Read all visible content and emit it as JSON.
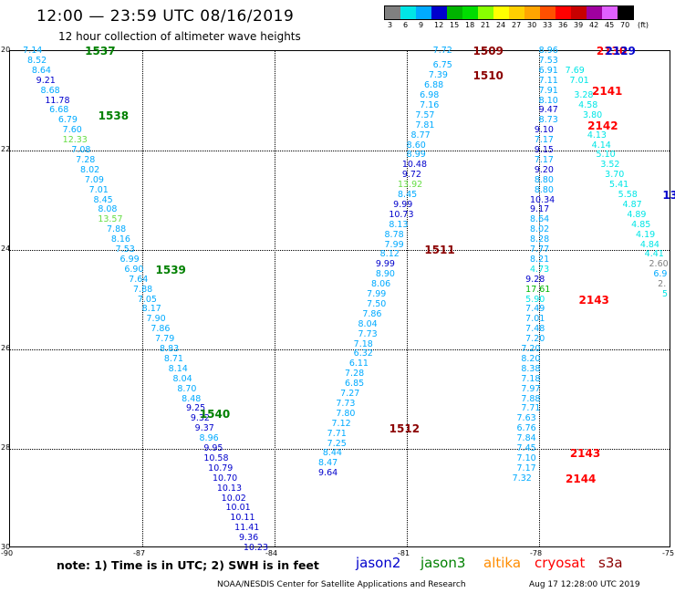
{
  "header": {
    "title": "12:00 — 23:59 UTC 08/16/2019",
    "subtitle": "12 hour collection of altimeter wave heights"
  },
  "color_scale": {
    "unit": "(ft)",
    "labels": [
      "3",
      "6",
      "9",
      "12",
      "15",
      "18",
      "21",
      "24",
      "27",
      "30",
      "33",
      "36",
      "39",
      "42",
      "45",
      "70"
    ],
    "colors": [
      "#808080",
      "#00e6e6",
      "#00aaff",
      "#0000cc",
      "#00b400",
      "#00dc00",
      "#88ff00",
      "#ffff00",
      "#ffd000",
      "#ffa500",
      "#ff5000",
      "#ff0000",
      "#c80000",
      "#a000a0",
      "#e060ff",
      "#000000"
    ]
  },
  "map": {
    "lon_range": [
      -90,
      -75
    ],
    "lat_range": [
      20,
      30
    ],
    "lon_ticks": [
      "-90",
      "-87",
      "-84",
      "-81",
      "-78",
      "-75"
    ],
    "lat_ticks": [
      "20",
      "22",
      "24",
      "26",
      "28",
      "30"
    ]
  },
  "tracks": [
    {
      "id": "1537",
      "lon": -88.3,
      "lat": 20.0,
      "color": "#008000"
    },
    {
      "id": "1538",
      "lon": -88.0,
      "lat": 21.3,
      "color": "#008000"
    },
    {
      "id": "1539",
      "lon": -86.7,
      "lat": 24.4,
      "color": "#008000"
    },
    {
      "id": "1540",
      "lon": -85.7,
      "lat": 27.3,
      "color": "#008000"
    },
    {
      "id": "1509",
      "lon": -79.5,
      "lat": 20.0,
      "color": "#8b0000"
    },
    {
      "id": "1510",
      "lon": -79.5,
      "lat": 20.5,
      "color": "#8b0000"
    },
    {
      "id": "1511",
      "lon": -80.6,
      "lat": 24.0,
      "color": "#8b0000"
    },
    {
      "id": "1512",
      "lon": -81.4,
      "lat": 27.6,
      "color": "#8b0000"
    },
    {
      "id": "2130",
      "lon": -76.7,
      "lat": 20.0,
      "color": "#ff0000"
    },
    {
      "id": "2129",
      "lon": -76.5,
      "lat": 20.0,
      "color": "#0000cc"
    },
    {
      "id": "2141",
      "lon": -76.8,
      "lat": 20.8,
      "color": "#ff0000"
    },
    {
      "id": "2142",
      "lon": -76.9,
      "lat": 21.5,
      "color": "#ff0000"
    },
    {
      "id": "2143",
      "lon": -77.1,
      "lat": 25.0,
      "color": "#ff0000"
    },
    {
      "id": "2143",
      "lon": -77.3,
      "lat": 28.1,
      "color": "#ff0000"
    },
    {
      "id": "2144",
      "lon": -77.4,
      "lat": 28.6,
      "color": "#ff0000"
    },
    {
      "id": "13",
      "lon": -75.2,
      "lat": 22.9,
      "color": "#0000cc"
    }
  ],
  "wave_heights": [
    {
      "v": "7.14",
      "lon": -89.5,
      "lat": 20.0,
      "c": "#00aaff"
    },
    {
      "v": "8.52",
      "lon": -89.4,
      "lat": 20.2,
      "c": "#00aaff"
    },
    {
      "v": "8.64",
      "lon": -89.3,
      "lat": 20.4,
      "c": "#00aaff"
    },
    {
      "v": "9.21",
      "lon": -89.2,
      "lat": 20.6,
      "c": "#0000cc"
    },
    {
      "v": "8.68",
      "lon": -89.1,
      "lat": 20.8,
      "c": "#00aaff"
    },
    {
      "v": "11.78",
      "lon": -89.0,
      "lat": 21.0,
      "c": "#0000cc"
    },
    {
      "v": "6.68",
      "lon": -88.9,
      "lat": 21.2,
      "c": "#00aaff"
    },
    {
      "v": "6.79",
      "lon": -88.7,
      "lat": 21.4,
      "c": "#00aaff"
    },
    {
      "v": "7.60",
      "lon": -88.6,
      "lat": 21.6,
      "c": "#00aaff"
    },
    {
      "v": "12.33",
      "lon": -88.6,
      "lat": 21.8,
      "c": "#66dd44"
    },
    {
      "v": "7.08",
      "lon": -88.4,
      "lat": 22.0,
      "c": "#00aaff"
    },
    {
      "v": "7.28",
      "lon": -88.3,
      "lat": 22.2,
      "c": "#00aaff"
    },
    {
      "v": "8.02",
      "lon": -88.2,
      "lat": 22.4,
      "c": "#00aaff"
    },
    {
      "v": "7.09",
      "lon": -88.1,
      "lat": 22.6,
      "c": "#00aaff"
    },
    {
      "v": "7.01",
      "lon": -88.0,
      "lat": 22.8,
      "c": "#00aaff"
    },
    {
      "v": "8.45",
      "lon": -87.9,
      "lat": 23.0,
      "c": "#00aaff"
    },
    {
      "v": "8.08",
      "lon": -87.8,
      "lat": 23.2,
      "c": "#00aaff"
    },
    {
      "v": "13.57",
      "lon": -87.8,
      "lat": 23.4,
      "c": "#66dd44"
    },
    {
      "v": "7.88",
      "lon": -87.6,
      "lat": 23.6,
      "c": "#00aaff"
    },
    {
      "v": "8.16",
      "lon": -87.5,
      "lat": 23.8,
      "c": "#00aaff"
    },
    {
      "v": "7.53",
      "lon": -87.4,
      "lat": 24.0,
      "c": "#00aaff"
    },
    {
      "v": "6.99",
      "lon": -87.3,
      "lat": 24.2,
      "c": "#00aaff"
    },
    {
      "v": "6.90",
      "lon": -87.2,
      "lat": 24.4,
      "c": "#00aaff"
    },
    {
      "v": "7.64",
      "lon": -87.1,
      "lat": 24.6,
      "c": "#00aaff"
    },
    {
      "v": "7.88",
      "lon": -87.0,
      "lat": 24.8,
      "c": "#00aaff"
    },
    {
      "v": "7.05",
      "lon": -86.9,
      "lat": 25.0,
      "c": "#00aaff"
    },
    {
      "v": "8.17",
      "lon": -86.8,
      "lat": 25.2,
      "c": "#00aaff"
    },
    {
      "v": "7.90",
      "lon": -86.7,
      "lat": 25.4,
      "c": "#00aaff"
    },
    {
      "v": "7.86",
      "lon": -86.6,
      "lat": 25.6,
      "c": "#00aaff"
    },
    {
      "v": "7.79",
      "lon": -86.5,
      "lat": 25.8,
      "c": "#00aaff"
    },
    {
      "v": "8.83",
      "lon": -86.4,
      "lat": 26.0,
      "c": "#00aaff"
    },
    {
      "v": "8.71",
      "lon": -86.3,
      "lat": 26.2,
      "c": "#00aaff"
    },
    {
      "v": "8.14",
      "lon": -86.2,
      "lat": 26.4,
      "c": "#00aaff"
    },
    {
      "v": "8.04",
      "lon": -86.1,
      "lat": 26.6,
      "c": "#00aaff"
    },
    {
      "v": "8.70",
      "lon": -86.0,
      "lat": 26.8,
      "c": "#00aaff"
    },
    {
      "v": "8.48",
      "lon": -85.9,
      "lat": 27.0,
      "c": "#00aaff"
    },
    {
      "v": "9.25",
      "lon": -85.8,
      "lat": 27.2,
      "c": "#0000cc"
    },
    {
      "v": "9.32",
      "lon": -85.7,
      "lat": 27.4,
      "c": "#0000cc"
    },
    {
      "v": "9.37",
      "lon": -85.6,
      "lat": 27.6,
      "c": "#0000cc"
    },
    {
      "v": "8.96",
      "lon": -85.5,
      "lat": 27.8,
      "c": "#00aaff"
    },
    {
      "v": "9.95",
      "lon": -85.4,
      "lat": 28.0,
      "c": "#0000cc"
    },
    {
      "v": "10.58",
      "lon": -85.4,
      "lat": 28.2,
      "c": "#0000cc"
    },
    {
      "v": "10.79",
      "lon": -85.3,
      "lat": 28.4,
      "c": "#0000cc"
    },
    {
      "v": "10.70",
      "lon": -85.2,
      "lat": 28.6,
      "c": "#0000cc"
    },
    {
      "v": "10.13",
      "lon": -85.1,
      "lat": 28.8,
      "c": "#0000cc"
    },
    {
      "v": "10.02",
      "lon": -85.0,
      "lat": 29.0,
      "c": "#0000cc"
    },
    {
      "v": "10.01",
      "lon": -84.9,
      "lat": 29.2,
      "c": "#0000cc"
    },
    {
      "v": "10.11",
      "lon": -84.8,
      "lat": 29.4,
      "c": "#0000cc"
    },
    {
      "v": "11.41",
      "lon": -84.7,
      "lat": 29.6,
      "c": "#0000cc"
    },
    {
      "v": "9.36",
      "lon": -84.6,
      "lat": 29.8,
      "c": "#0000cc"
    },
    {
      "v": "10.23",
      "lon": -84.5,
      "lat": 30.0,
      "c": "#0000cc"
    },
    {
      "v": "7.72",
      "lon": -80.2,
      "lat": 20.0,
      "c": "#00aaff"
    },
    {
      "v": "6.75",
      "lon": -80.2,
      "lat": 20.3,
      "c": "#00aaff"
    },
    {
      "v": "7.39",
      "lon": -80.3,
      "lat": 20.5,
      "c": "#00aaff"
    },
    {
      "v": "6.88",
      "lon": -80.4,
      "lat": 20.7,
      "c": "#00aaff"
    },
    {
      "v": "6.98",
      "lon": -80.5,
      "lat": 20.9,
      "c": "#00aaff"
    },
    {
      "v": "7.16",
      "lon": -80.5,
      "lat": 21.1,
      "c": "#00aaff"
    },
    {
      "v": "7.57",
      "lon": -80.6,
      "lat": 21.3,
      "c": "#00aaff"
    },
    {
      "v": "7.81",
      "lon": -80.6,
      "lat": 21.5,
      "c": "#00aaff"
    },
    {
      "v": "8.77",
      "lon": -80.7,
      "lat": 21.7,
      "c": "#00aaff"
    },
    {
      "v": "8.60",
      "lon": -80.8,
      "lat": 21.9,
      "c": "#00aaff"
    },
    {
      "v": "8.99",
      "lon": -80.8,
      "lat": 22.1,
      "c": "#00aaff"
    },
    {
      "v": "10.48",
      "lon": -80.9,
      "lat": 22.3,
      "c": "#0000cc"
    },
    {
      "v": "9.72",
      "lon": -80.9,
      "lat": 22.5,
      "c": "#0000cc"
    },
    {
      "v": "13.92",
      "lon": -81.0,
      "lat": 22.7,
      "c": "#66dd44"
    },
    {
      "v": "8.45",
      "lon": -81.0,
      "lat": 22.9,
      "c": "#00aaff"
    },
    {
      "v": "9.99",
      "lon": -81.1,
      "lat": 23.1,
      "c": "#0000cc"
    },
    {
      "v": "10.73",
      "lon": -81.2,
      "lat": 23.3,
      "c": "#0000cc"
    },
    {
      "v": "8.13",
      "lon": -81.2,
      "lat": 23.5,
      "c": "#00aaff"
    },
    {
      "v": "8.78",
      "lon": -81.3,
      "lat": 23.7,
      "c": "#00aaff"
    },
    {
      "v": "7.99",
      "lon": -81.3,
      "lat": 23.9,
      "c": "#00aaff"
    },
    {
      "v": "8.12",
      "lon": -81.4,
      "lat": 24.1,
      "c": "#00aaff"
    },
    {
      "v": "9.99",
      "lon": -81.5,
      "lat": 24.3,
      "c": "#0000cc"
    },
    {
      "v": "8.90",
      "lon": -81.5,
      "lat": 24.5,
      "c": "#00aaff"
    },
    {
      "v": "8.06",
      "lon": -81.6,
      "lat": 24.7,
      "c": "#00aaff"
    },
    {
      "v": "7.99",
      "lon": -81.7,
      "lat": 24.9,
      "c": "#00aaff"
    },
    {
      "v": "7.50",
      "lon": -81.7,
      "lat": 25.1,
      "c": "#00aaff"
    },
    {
      "v": "7.86",
      "lon": -81.8,
      "lat": 25.3,
      "c": "#00aaff"
    },
    {
      "v": "8.04",
      "lon": -81.9,
      "lat": 25.5,
      "c": "#00aaff"
    },
    {
      "v": "7.73",
      "lon": -81.9,
      "lat": 25.7,
      "c": "#00aaff"
    },
    {
      "v": "7.18",
      "lon": -82.0,
      "lat": 25.9,
      "c": "#00aaff"
    },
    {
      "v": "6.32",
      "lon": -82.0,
      "lat": 26.1,
      "c": "#00aaff"
    },
    {
      "v": "6.11",
      "lon": -82.1,
      "lat": 26.3,
      "c": "#00aaff"
    },
    {
      "v": "7.28",
      "lon": -82.2,
      "lat": 26.5,
      "c": "#00aaff"
    },
    {
      "v": "6.85",
      "lon": -82.2,
      "lat": 26.7,
      "c": "#00aaff"
    },
    {
      "v": "7.27",
      "lon": -82.3,
      "lat": 26.9,
      "c": "#00aaff"
    },
    {
      "v": "7.73",
      "lon": -82.4,
      "lat": 27.1,
      "c": "#00aaff"
    },
    {
      "v": "7.80",
      "lon": -82.4,
      "lat": 27.3,
      "c": "#00aaff"
    },
    {
      "v": "7.12",
      "lon": -82.5,
      "lat": 27.5,
      "c": "#00aaff"
    },
    {
      "v": "7.71",
      "lon": -82.6,
      "lat": 27.7,
      "c": "#00aaff"
    },
    {
      "v": "7.25",
      "lon": -82.6,
      "lat": 27.9,
      "c": "#00aaff"
    },
    {
      "v": "8.44",
      "lon": -82.7,
      "lat": 28.1,
      "c": "#00aaff"
    },
    {
      "v": "8.47",
      "lon": -82.8,
      "lat": 28.3,
      "c": "#00aaff"
    },
    {
      "v": "9.64",
      "lon": -82.8,
      "lat": 28.5,
      "c": "#0000cc"
    },
    {
      "v": "8.96",
      "lon": -77.8,
      "lat": 20.0,
      "c": "#00aaff"
    },
    {
      "v": "7.53",
      "lon": -77.8,
      "lat": 20.2,
      "c": "#00aaff"
    },
    {
      "v": "6.91",
      "lon": -77.8,
      "lat": 20.4,
      "c": "#00aaff"
    },
    {
      "v": "7.11",
      "lon": -77.8,
      "lat": 20.6,
      "c": "#00aaff"
    },
    {
      "v": "7.91",
      "lon": -77.8,
      "lat": 20.8,
      "c": "#00aaff"
    },
    {
      "v": "8.10",
      "lon": -77.8,
      "lat": 21.0,
      "c": "#00aaff"
    },
    {
      "v": "9.47",
      "lon": -77.8,
      "lat": 21.2,
      "c": "#0000cc"
    },
    {
      "v": "8.73",
      "lon": -77.8,
      "lat": 21.4,
      "c": "#00aaff"
    },
    {
      "v": "9.10",
      "lon": -77.9,
      "lat": 21.6,
      "c": "#0000cc"
    },
    {
      "v": "7.17",
      "lon": -77.9,
      "lat": 21.8,
      "c": "#00aaff"
    },
    {
      "v": "9.15",
      "lon": -77.9,
      "lat": 22.0,
      "c": "#0000cc"
    },
    {
      "v": "7.17",
      "lon": -77.9,
      "lat": 22.2,
      "c": "#00aaff"
    },
    {
      "v": "9.20",
      "lon": -77.9,
      "lat": 22.4,
      "c": "#0000cc"
    },
    {
      "v": "8.80",
      "lon": -77.9,
      "lat": 22.6,
      "c": "#00aaff"
    },
    {
      "v": "8.80",
      "lon": -77.9,
      "lat": 22.8,
      "c": "#00aaff"
    },
    {
      "v": "10.34",
      "lon": -78.0,
      "lat": 23.0,
      "c": "#0000cc"
    },
    {
      "v": "9.17",
      "lon": -78.0,
      "lat": 23.2,
      "c": "#0000cc"
    },
    {
      "v": "8.64",
      "lon": -78.0,
      "lat": 23.4,
      "c": "#00aaff"
    },
    {
      "v": "8.02",
      "lon": -78.0,
      "lat": 23.6,
      "c": "#00aaff"
    },
    {
      "v": "8.28",
      "lon": -78.0,
      "lat": 23.8,
      "c": "#00aaff"
    },
    {
      "v": "7.77",
      "lon": -78.0,
      "lat": 24.0,
      "c": "#00aaff"
    },
    {
      "v": "8.21",
      "lon": -78.0,
      "lat": 24.2,
      "c": "#00aaff"
    },
    {
      "v": "4.73",
      "lon": -78.0,
      "lat": 24.4,
      "c": "#00e6e6"
    },
    {
      "v": "9.28",
      "lon": -78.1,
      "lat": 24.6,
      "c": "#0000cc"
    },
    {
      "v": "17.61",
      "lon": -78.1,
      "lat": 24.8,
      "c": "#00b400"
    },
    {
      "v": "5.90",
      "lon": -78.1,
      "lat": 25.0,
      "c": "#00e6e6"
    },
    {
      "v": "7.49",
      "lon": -78.1,
      "lat": 25.2,
      "c": "#00aaff"
    },
    {
      "v": "7.01",
      "lon": -78.1,
      "lat": 25.4,
      "c": "#00aaff"
    },
    {
      "v": "7.48",
      "lon": -78.1,
      "lat": 25.6,
      "c": "#00aaff"
    },
    {
      "v": "7.20",
      "lon": -78.1,
      "lat": 25.8,
      "c": "#00aaff"
    },
    {
      "v": "7.20",
      "lon": -78.2,
      "lat": 26.0,
      "c": "#00aaff"
    },
    {
      "v": "8.20",
      "lon": -78.2,
      "lat": 26.2,
      "c": "#00aaff"
    },
    {
      "v": "8.38",
      "lon": -78.2,
      "lat": 26.4,
      "c": "#00aaff"
    },
    {
      "v": "7.18",
      "lon": -78.2,
      "lat": 26.6,
      "c": "#00aaff"
    },
    {
      "v": "7.97",
      "lon": -78.2,
      "lat": 26.8,
      "c": "#00aaff"
    },
    {
      "v": "7.88",
      "lon": -78.2,
      "lat": 27.0,
      "c": "#00aaff"
    },
    {
      "v": "7.71",
      "lon": -78.2,
      "lat": 27.2,
      "c": "#00aaff"
    },
    {
      "v": "7.63",
      "lon": -78.3,
      "lat": 27.4,
      "c": "#00aaff"
    },
    {
      "v": "6.76",
      "lon": -78.3,
      "lat": 27.6,
      "c": "#00aaff"
    },
    {
      "v": "7.84",
      "lon": -78.3,
      "lat": 27.8,
      "c": "#00aaff"
    },
    {
      "v": "7.45",
      "lon": -78.3,
      "lat": 28.0,
      "c": "#00aaff"
    },
    {
      "v": "7.10",
      "lon": -78.3,
      "lat": 28.2,
      "c": "#00aaff"
    },
    {
      "v": "7.17",
      "lon": -78.3,
      "lat": 28.4,
      "c": "#00aaff"
    },
    {
      "v": "7.32",
      "lon": -78.4,
      "lat": 28.6,
      "c": "#00aaff"
    },
    {
      "v": "7.69",
      "lon": -77.2,
      "lat": 20.4,
      "c": "#00e6e6"
    },
    {
      "v": "7.01",
      "lon": -77.1,
      "lat": 20.6,
      "c": "#00e6e6"
    },
    {
      "v": "3.28",
      "lon": -77.0,
      "lat": 20.9,
      "c": "#00e6e6"
    },
    {
      "v": "4.58",
      "lon": -76.9,
      "lat": 21.1,
      "c": "#00e6e6"
    },
    {
      "v": "3.80",
      "lon": -76.8,
      "lat": 21.3,
      "c": "#00e6e6"
    },
    {
      "v": "4.13",
      "lon": -76.7,
      "lat": 21.7,
      "c": "#00e6e6"
    },
    {
      "v": "4.14",
      "lon": -76.6,
      "lat": 21.9,
      "c": "#00e6e6"
    },
    {
      "v": "5.10",
      "lon": -76.5,
      "lat": 22.1,
      "c": "#00e6e6"
    },
    {
      "v": "3.52",
      "lon": -76.4,
      "lat": 22.3,
      "c": "#00e6e6"
    },
    {
      "v": "3.70",
      "lon": -76.3,
      "lat": 22.5,
      "c": "#00e6e6"
    },
    {
      "v": "5.41",
      "lon": -76.2,
      "lat": 22.7,
      "c": "#00e6e6"
    },
    {
      "v": "5.58",
      "lon": -76.0,
      "lat": 22.9,
      "c": "#00e6e6"
    },
    {
      "v": "4.87",
      "lon": -75.9,
      "lat": 23.1,
      "c": "#00e6e6"
    },
    {
      "v": "4.89",
      "lon": -75.8,
      "lat": 23.3,
      "c": "#00e6e6"
    },
    {
      "v": "4.85",
      "lon": -75.7,
      "lat": 23.5,
      "c": "#00e6e6"
    },
    {
      "v": "4.19",
      "lon": -75.6,
      "lat": 23.7,
      "c": "#00e6e6"
    },
    {
      "v": "4.84",
      "lon": -75.5,
      "lat": 23.9,
      "c": "#00e6e6"
    },
    {
      "v": "4.41",
      "lon": -75.4,
      "lat": 24.1,
      "c": "#00e6e6"
    },
    {
      "v": "2.60",
      "lon": -75.3,
      "lat": 24.3,
      "c": "#808080"
    },
    {
      "v": "6.9",
      "lon": -75.2,
      "lat": 24.5,
      "c": "#00aaff"
    },
    {
      "v": "2.",
      "lon": -75.1,
      "lat": 24.7,
      "c": "#808080"
    },
    {
      "v": "5",
      "lon": -75.0,
      "lat": 24.9,
      "c": "#00e6e6"
    }
  ],
  "footer": {
    "note": "note:  1) Time is in UTC;  2) SWH is in feet",
    "legend": [
      {
        "name": "jason2",
        "color": "#0000cc"
      },
      {
        "name": "jason3",
        "color": "#008000"
      },
      {
        "name": "altika",
        "color": "#ff8c00"
      },
      {
        "name": "cryosat",
        "color": "#ff0000"
      },
      {
        "name": "s3a",
        "color": "#8b0000"
      }
    ],
    "credit": "NOAA/NESDIS Center for Satellite Applications and Research",
    "timestamp": "Aug 17 12:28:00 UTC 2019"
  }
}
